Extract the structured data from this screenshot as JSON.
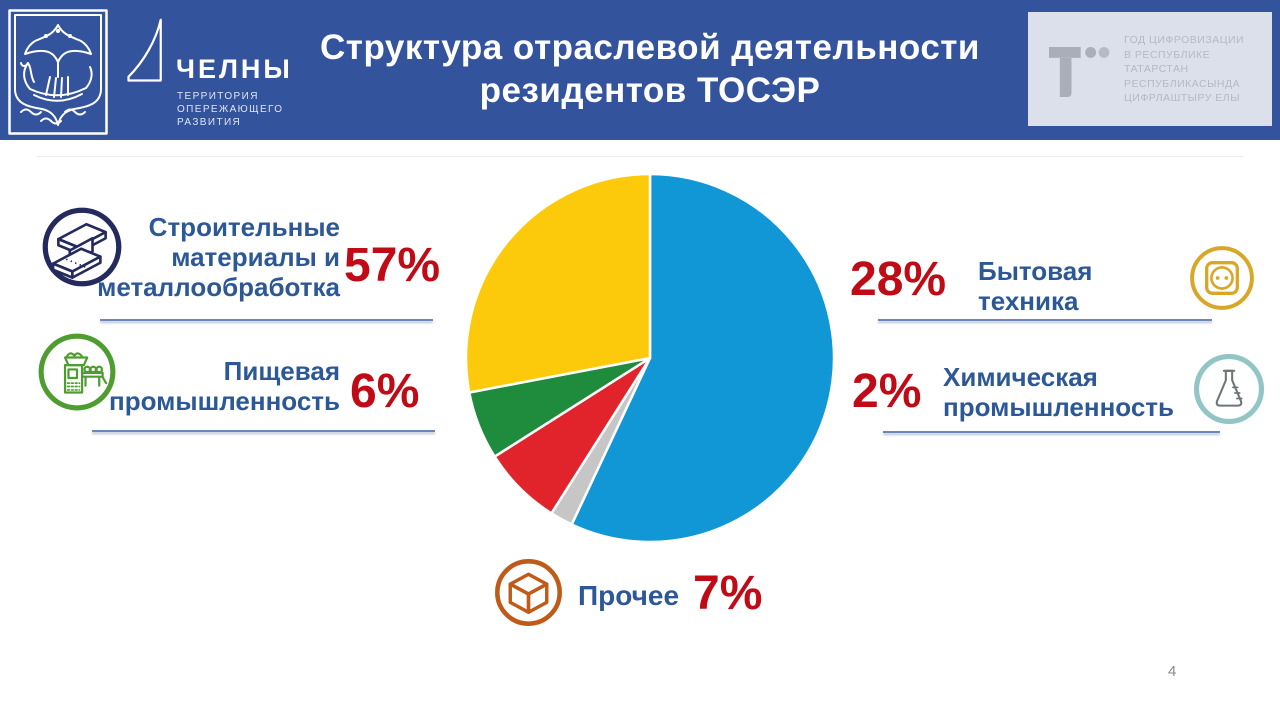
{
  "slide": {
    "page_number": "4"
  },
  "header": {
    "background": "#34539d",
    "title_line1": "Структура отраслевой деятельности",
    "title_line2": "резидентов ТОСЭР",
    "chelny_logo": {
      "name": "ЧЕЛНЫ",
      "tagline_lines": [
        "ТЕРРИТОРИЯ",
        "ОПЕРЕЖАЮЩЕГО",
        "РАЗВИТИЯ"
      ]
    },
    "digital_year_panel": {
      "background": "#dce0ea",
      "lines": [
        "ГОД ЦИФРОВИЗАЦИИ",
        "В РЕСПУБЛИКЕ",
        "ТАТАРСТАН",
        "РЕСПУБЛИКАСЫНДА",
        "ЦИФРЛАШТЫРУ ЕЛЫ"
      ]
    }
  },
  "chart_data": {
    "type": "pie",
    "title": "Структура отраслевой деятельности резидентов ТОСЭР",
    "start_angle_deg": 0,
    "direction": "clockwise",
    "legend_position": "callouts",
    "slices": [
      {
        "label": "Строительные материалы и металлообработка",
        "value": 57,
        "color": "#1197d6"
      },
      {
        "label": "Химическая промышленность",
        "value": 2,
        "color": "#c6c6c6"
      },
      {
        "label": "Прочее",
        "value": 7,
        "color": "#e1232b"
      },
      {
        "label": "Пищевая промышленность",
        "value": 6,
        "color": "#1f8b3c"
      },
      {
        "label": "Бытовая техника",
        "value": 28,
        "color": "#fdca0b"
      }
    ]
  },
  "callouts": {
    "construction": {
      "lines": [
        "Строительные",
        "материалы и",
        "металлообработка"
      ],
      "percent": "57%",
      "icon_color": "#252a5e"
    },
    "food": {
      "lines": [
        "Пищевая",
        "промышленность"
      ],
      "percent": "6%",
      "icon_color": "#4f9d30"
    },
    "other": {
      "label": "Прочее",
      "percent": "7%",
      "icon_color": "#c05a18"
    },
    "appliances": {
      "percent": "28%",
      "lines": [
        "Бытовая",
        "техника"
      ],
      "icon_color": "#d9a728"
    },
    "chemical": {
      "percent": "2%",
      "lines": [
        "Химическая",
        "промышленность"
      ],
      "icon_color": "#93c5c6",
      "glyph_color": "#6f7478"
    }
  },
  "theme": {
    "label_color": "#2d5897",
    "percent_color": "#c00a16",
    "underline_color": "#6d86ba",
    "page_number_color": "#8b8b8b"
  }
}
